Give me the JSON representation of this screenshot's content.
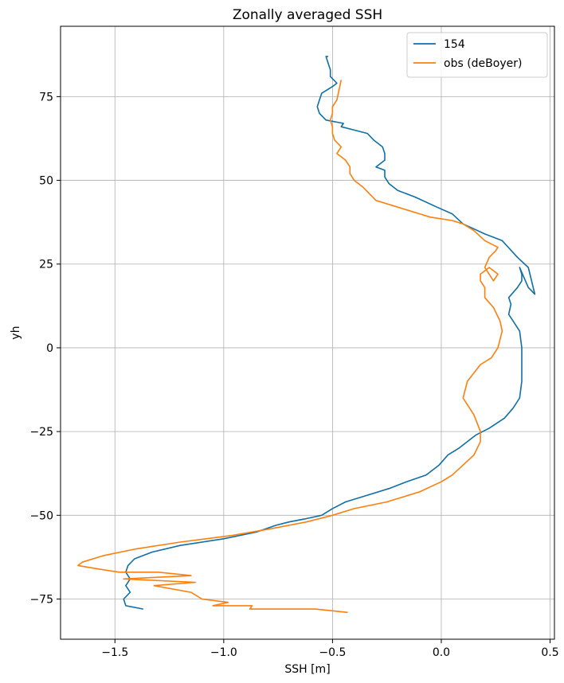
{
  "chart_data": {
    "type": "line",
    "title": "Zonally averaged SSH",
    "xlabel": "SSH [m]",
    "ylabel": "yh",
    "xlim": [
      -1.75,
      0.52
    ],
    "ylim": [
      -87,
      96
    ],
    "grid": true,
    "legend_position": "top-right",
    "xticks": [
      -1.5,
      -1.0,
      -0.5,
      0.0,
      0.5
    ],
    "xtick_labels": [
      "−1.5",
      "−1.0",
      "−0.5",
      "0.0",
      "0.5"
    ],
    "yticks": [
      -75,
      -50,
      -25,
      0,
      25,
      50,
      75
    ],
    "ytick_labels": [
      "−75",
      "−50",
      "−25",
      "0",
      "25",
      "50",
      "75"
    ],
    "series": [
      {
        "name": "154",
        "color": "#0f6fa8",
        "x": [
          -1.37,
          -1.45,
          -1.46,
          -1.43,
          -1.45,
          -1.43,
          -1.45,
          -1.44,
          -1.41,
          -1.33,
          -1.2,
          -1.0,
          -0.85,
          -0.76,
          -0.7,
          -0.62,
          -0.55,
          -0.5,
          -0.44,
          -0.34,
          -0.24,
          -0.16,
          -0.07,
          -0.01,
          0.03,
          0.08,
          0.12,
          0.16,
          0.22,
          0.29,
          0.33,
          0.36,
          0.37,
          0.37,
          0.37,
          0.36,
          0.33,
          0.31,
          0.32,
          0.31,
          0.35,
          0.37,
          0.37,
          0.36,
          0.4,
          0.43,
          0.4,
          0.35,
          0.28,
          0.2,
          0.1,
          0.05,
          -0.02,
          -0.12,
          -0.2,
          -0.24,
          -0.26,
          -0.26,
          -0.3,
          -0.26,
          -0.26,
          -0.27,
          -0.31,
          -0.34,
          -0.4,
          -0.46,
          -0.45,
          -0.53,
          -0.56,
          -0.57,
          -0.56,
          -0.55,
          -0.5,
          -0.48,
          -0.51,
          -0.51,
          -0.52,
          -0.53,
          -0.52
        ],
        "y": [
          -78,
          -77,
          -75,
          -73,
          -71,
          -69,
          -67,
          -65,
          -63,
          -61,
          -59,
          -57,
          -55,
          -53,
          -52,
          -51,
          -50,
          -48,
          -46,
          -44,
          -42,
          -40,
          -38,
          -35,
          -32,
          -30,
          -28,
          -26,
          -24,
          -21,
          -18,
          -15,
          -10,
          -5,
          0,
          5,
          8,
          10,
          13,
          15,
          18,
          20,
          22,
          24,
          18,
          16,
          24,
          27,
          32,
          34,
          37,
          40,
          42,
          45,
          47,
          49,
          51,
          53,
          54,
          56,
          58,
          60,
          62,
          64,
          65,
          66,
          67,
          68,
          70,
          72,
          74,
          76,
          78,
          79,
          81,
          83,
          85,
          87,
          87
        ]
      },
      {
        "name": "obs (deBoyer)",
        "color": "#ff7f0e",
        "x": [
          -0.43,
          -0.58,
          -0.88,
          -0.87,
          -1.05,
          -0.98,
          -1.1,
          -1.15,
          -1.32,
          -1.13,
          -1.46,
          -1.15,
          -1.3,
          -1.48,
          -1.58,
          -1.67,
          -1.65,
          -1.55,
          -1.4,
          -1.2,
          -0.96,
          -0.78,
          -0.62,
          -0.5,
          -0.4,
          -0.25,
          -0.1,
          0.0,
          0.05,
          0.1,
          0.15,
          0.18,
          0.18,
          0.15,
          0.1,
          0.12,
          0.18,
          0.23,
          0.26,
          0.28,
          0.27,
          0.24,
          0.2,
          0.2,
          0.18,
          0.18,
          0.22,
          0.26,
          0.24,
          0.2,
          0.22,
          0.25,
          0.26,
          0.2,
          0.15,
          0.1,
          0.05,
          -0.05,
          -0.1,
          -0.2,
          -0.3,
          -0.33,
          -0.36,
          -0.4,
          -0.42,
          -0.42,
          -0.44,
          -0.48,
          -0.46,
          -0.49,
          -0.5,
          -0.5,
          -0.51,
          -0.5,
          -0.5,
          -0.48,
          -0.47,
          -0.46
        ],
        "y": [
          -79,
          -78,
          -78,
          -77,
          -77,
          -76,
          -75,
          -73,
          -71,
          -70,
          -69,
          -68,
          -67,
          -67,
          -66,
          -65,
          -64,
          -62,
          -60,
          -58,
          -56,
          -54,
          -52,
          -50,
          -48,
          -46,
          -43,
          -40,
          -38,
          -35,
          -32,
          -28,
          -25,
          -20,
          -15,
          -10,
          -5,
          -3,
          0,
          5,
          8,
          12,
          15,
          18,
          20,
          22,
          24,
          22,
          20,
          24,
          27,
          29,
          30,
          32,
          35,
          37,
          38,
          39,
          40,
          42,
          44,
          46,
          48,
          50,
          52,
          54,
          56,
          58,
          60,
          62,
          64,
          66,
          68,
          70,
          72,
          74,
          77,
          80
        ]
      }
    ]
  }
}
